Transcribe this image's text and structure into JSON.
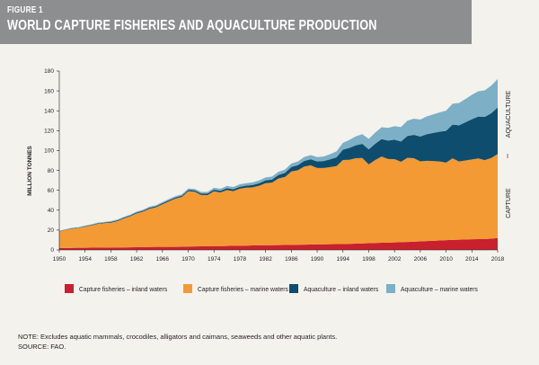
{
  "header": {
    "figure_label": "FIGURE 1",
    "title": "WORLD CAPTURE FISHERIES AND AQUACULTURE PRODUCTION"
  },
  "colors": {
    "capture_inland": "#c8202e",
    "capture_marine": "#f39a34",
    "aqua_inland": "#0e4d6e",
    "aqua_marine": "#7dafc6",
    "header_bg": "#8d8e90"
  },
  "chart_data": {
    "type": "area",
    "stacked": true,
    "ylabel": "MILLION TONNES",
    "ylim": [
      0,
      180
    ],
    "yticks": [
      0,
      20,
      40,
      60,
      80,
      100,
      120,
      140,
      160,
      180
    ],
    "xlim": [
      1950,
      2018
    ],
    "xticks": [
      1950,
      1954,
      1958,
      1962,
      1966,
      1970,
      1974,
      1978,
      1982,
      1986,
      1990,
      1994,
      1998,
      2002,
      2006,
      2010,
      2014,
      2018
    ],
    "grid": false,
    "legend_position": "bottom",
    "right_labels": [
      "AQUACULTURE",
      "CAPTURE"
    ],
    "x": [
      1950,
      1951,
      1952,
      1953,
      1954,
      1955,
      1956,
      1957,
      1958,
      1959,
      1960,
      1961,
      1962,
      1963,
      1964,
      1965,
      1966,
      1967,
      1968,
      1969,
      1970,
      1971,
      1972,
      1973,
      1974,
      1975,
      1976,
      1977,
      1978,
      1979,
      1980,
      1981,
      1982,
      1983,
      1984,
      1985,
      1986,
      1987,
      1988,
      1989,
      1990,
      1991,
      1992,
      1993,
      1994,
      1995,
      1996,
      1997,
      1998,
      1999,
      2000,
      2001,
      2002,
      2003,
      2004,
      2005,
      2006,
      2007,
      2008,
      2009,
      2010,
      2011,
      2012,
      2013,
      2014,
      2015,
      2016,
      2017,
      2018
    ],
    "series": [
      {
        "name": "Capture fisheries – inland waters",
        "values": [
          1.8,
          1.9,
          2.0,
          2.1,
          2.2,
          2.3,
          2.3,
          2.4,
          2.4,
          2.5,
          2.5,
          2.6,
          2.7,
          2.8,
          2.9,
          3.0,
          3.0,
          3.1,
          3.1,
          3.2,
          3.4,
          3.5,
          3.6,
          3.7,
          3.8,
          3.9,
          4.0,
          4.1,
          4.2,
          4.3,
          4.5,
          4.6,
          4.7,
          4.8,
          4.9,
          5.0,
          5.1,
          5.2,
          5.3,
          5.4,
          5.6,
          5.7,
          5.8,
          5.9,
          6.0,
          6.1,
          6.3,
          6.5,
          6.8,
          7.0,
          7.2,
          7.4,
          7.6,
          7.8,
          8.0,
          8.3,
          8.6,
          8.9,
          9.2,
          9.5,
          9.8,
          10.1,
          10.3,
          10.5,
          10.7,
          10.8,
          11.0,
          11.3,
          12.0
        ]
      },
      {
        "name": "Capture fisheries – marine waters",
        "values": [
          16.8,
          18.3,
          19.4,
          19.9,
          21.2,
          22.4,
          23.9,
          24.5,
          25.0,
          26.5,
          29.1,
          31.2,
          34.0,
          35.8,
          38.5,
          39.9,
          42.9,
          45.8,
          48.4,
          50.1,
          55.6,
          55.1,
          51.7,
          51.5,
          55.2,
          53.9,
          56.3,
          55.0,
          57.4,
          58.3,
          58.5,
          60.0,
          62.5,
          62.9,
          67.0,
          68.4,
          73.8,
          75.0,
          78.6,
          79.7,
          76.8,
          76.7,
          77.5,
          78.4,
          84.5,
          84.6,
          86.0,
          86.0,
          79.2,
          83.4,
          86.8,
          84.1,
          83.8,
          80.8,
          84.7,
          84.0,
          80.5,
          80.8,
          80.2,
          79.5,
          78.1,
          82.0,
          78.7,
          79.5,
          80.3,
          81.2,
          79.3,
          81.2,
          84.4
        ]
      },
      {
        "name": "Aquaculture – inland waters",
        "values": [
          0.3,
          0.3,
          0.4,
          0.4,
          0.5,
          0.5,
          0.6,
          0.6,
          0.7,
          0.7,
          0.8,
          0.8,
          0.9,
          0.9,
          1.0,
          1.0,
          1.1,
          1.1,
          1.2,
          1.2,
          1.3,
          1.3,
          1.4,
          1.5,
          1.6,
          1.7,
          1.8,
          1.9,
          2.0,
          2.1,
          2.3,
          2.5,
          2.8,
          3.1,
          3.5,
          4.0,
          4.5,
          5.0,
          5.6,
          6.1,
          6.6,
          7.0,
          7.8,
          8.9,
          10.3,
          12.0,
          13.0,
          14.2,
          15.2,
          16.4,
          17.5,
          18.5,
          19.5,
          20.5,
          21.9,
          23.5,
          25.0,
          26.8,
          28.3,
          30.0,
          32.0,
          34.0,
          36.4,
          38.5,
          40.5,
          42.2,
          43.6,
          45.0,
          47.0
        ]
      },
      {
        "name": "Aquaculture – marine waters",
        "values": [
          0.4,
          0.4,
          0.5,
          0.5,
          0.6,
          0.6,
          0.7,
          0.7,
          0.8,
          0.8,
          0.9,
          0.9,
          1.0,
          1.0,
          1.1,
          1.1,
          1.2,
          1.2,
          1.3,
          1.3,
          1.4,
          1.5,
          1.6,
          1.7,
          1.9,
          2.0,
          2.2,
          2.3,
          2.4,
          2.5,
          2.6,
          2.8,
          2.9,
          3.0,
          3.2,
          3.4,
          3.6,
          3.8,
          4.0,
          4.2,
          4.4,
          4.6,
          5.2,
          6.0,
          7.0,
          8.0,
          9.0,
          9.8,
          10.5,
          11.2,
          12.0,
          12.8,
          13.6,
          14.5,
          15.4,
          16.3,
          17.0,
          17.8,
          18.6,
          19.4,
          20.2,
          21.0,
          22.4,
          23.4,
          24.5,
          25.5,
          26.6,
          27.8,
          28.6
        ]
      }
    ]
  },
  "note": "NOTE: Excludes aquatic mammals, crocodiles, alligators and caimans, seaweeds and other aquatic plants.",
  "source": "SOURCE: FAO."
}
